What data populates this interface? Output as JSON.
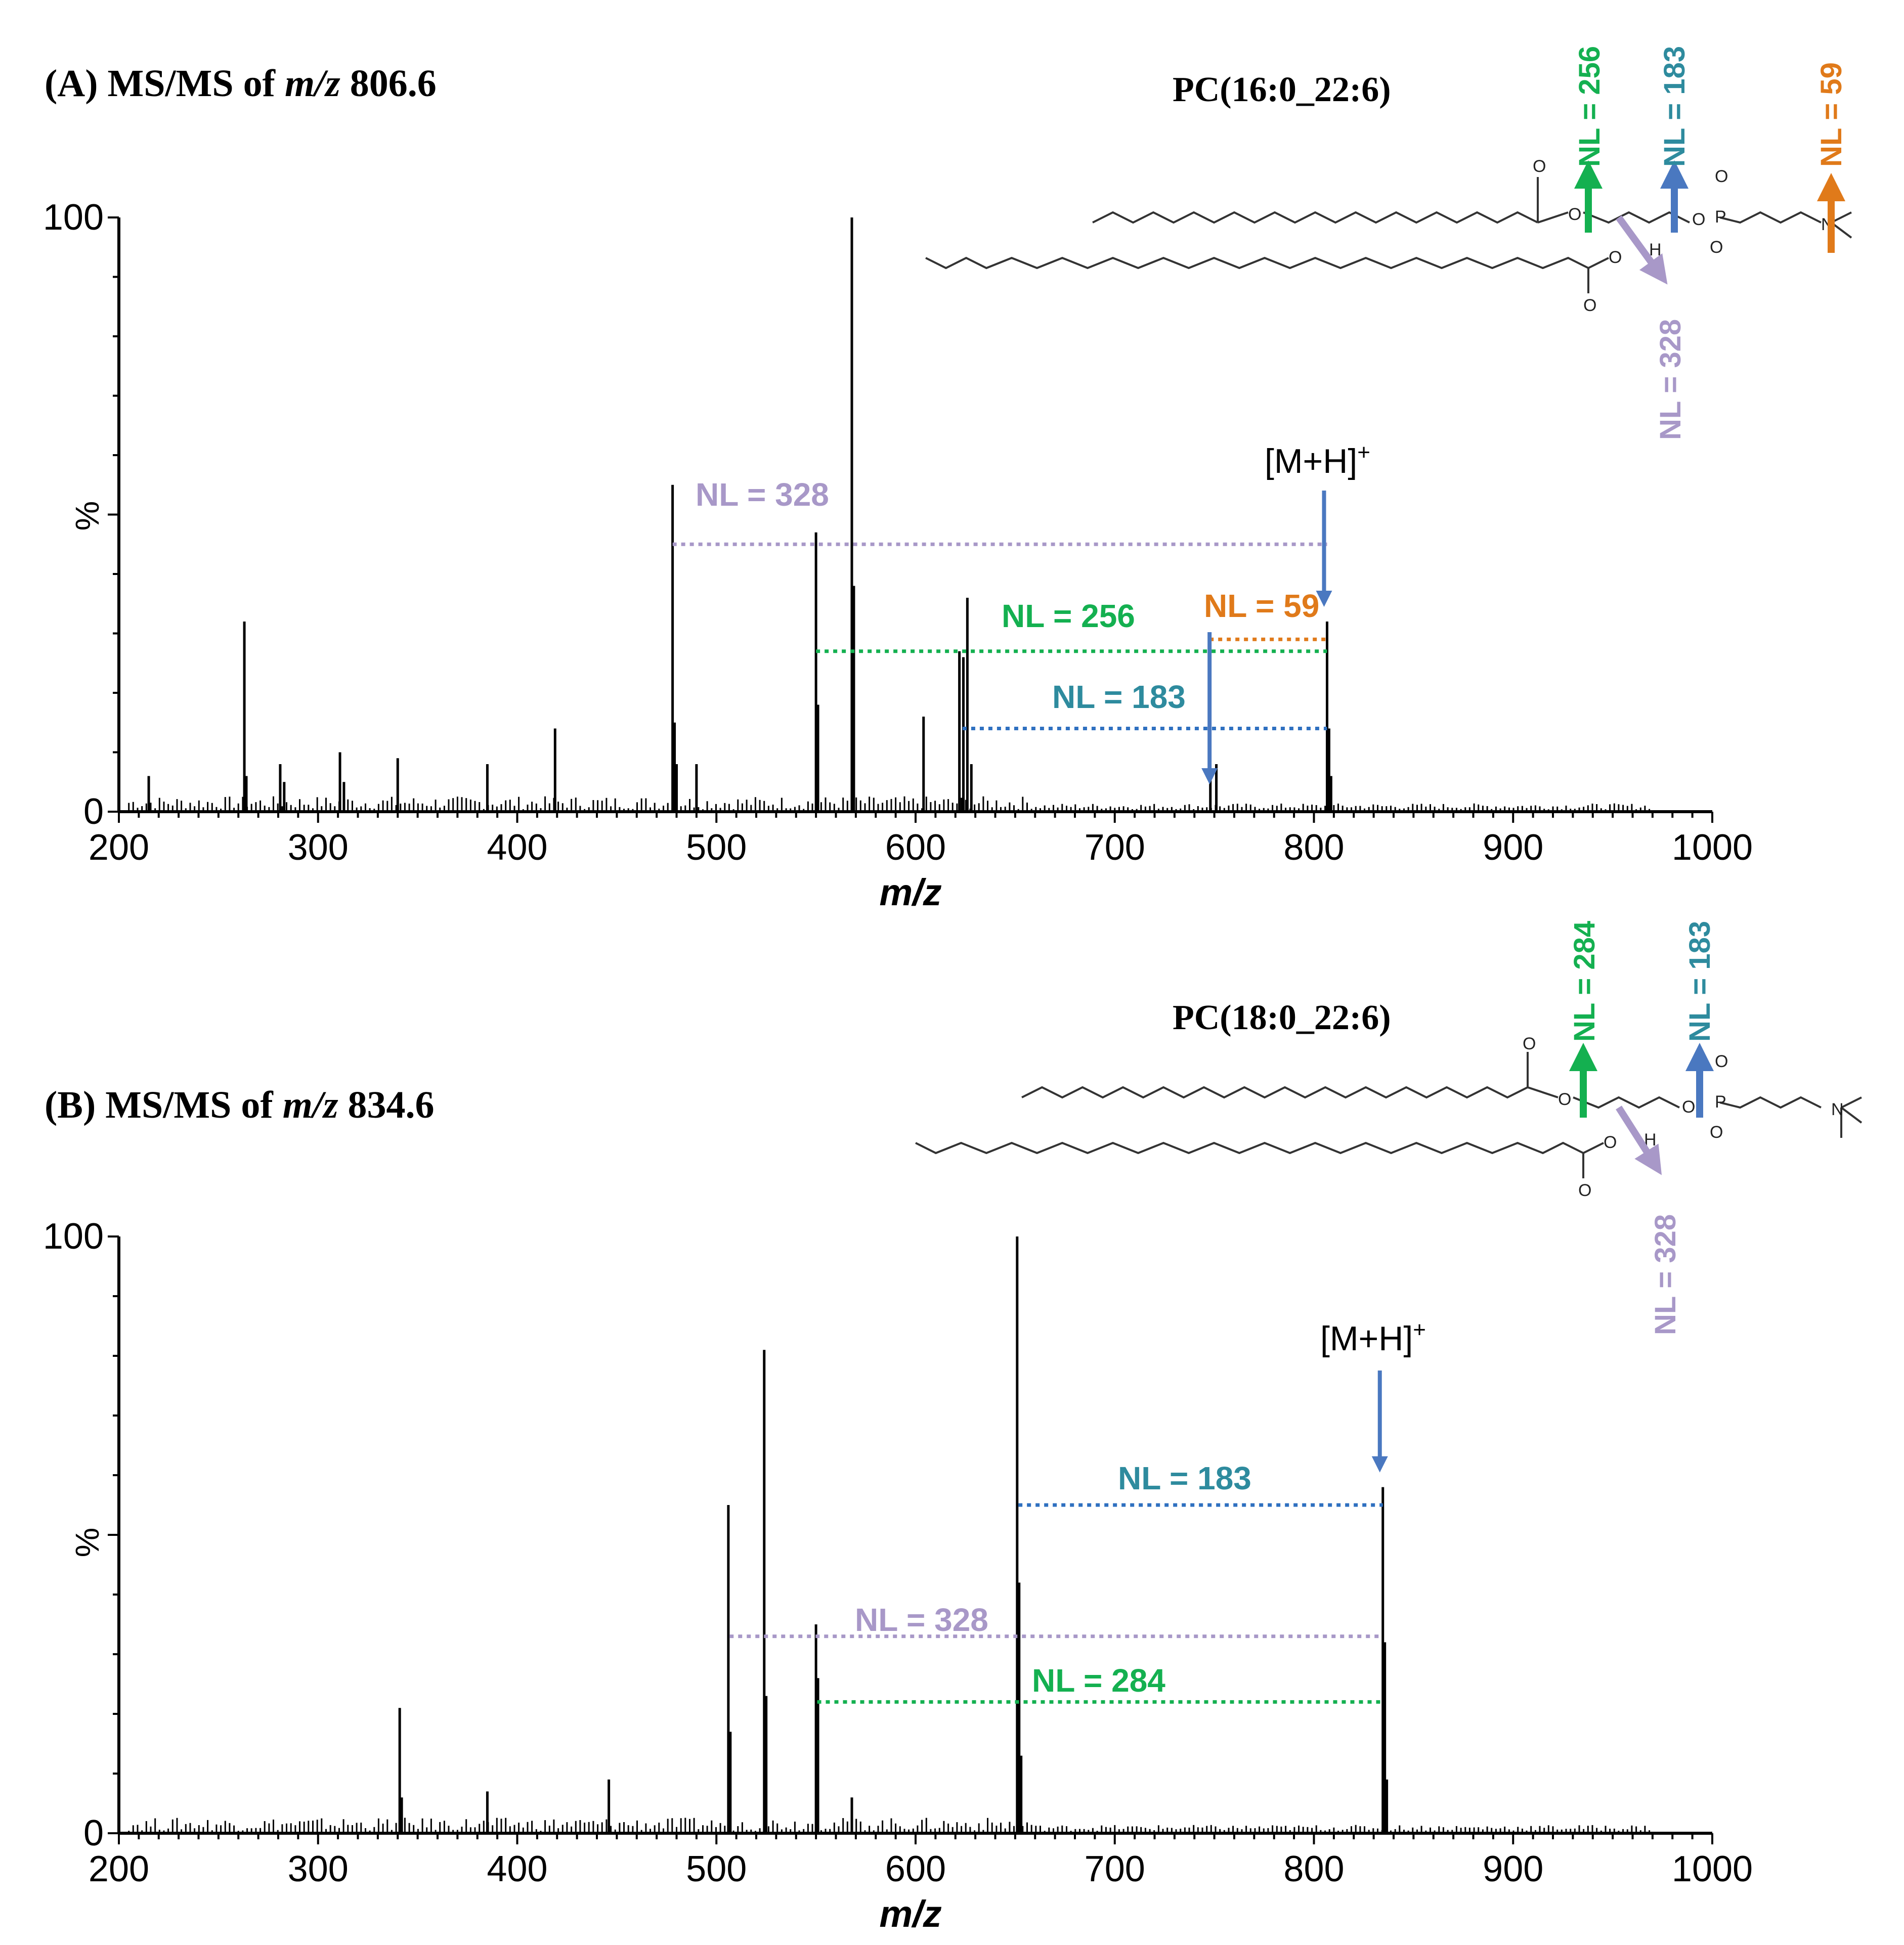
{
  "colors": {
    "green": "#14b050",
    "teal": "#2e8b9e",
    "lavender": "#a898c8",
    "orange": "#e07a1a",
    "blue": "#4a78c0",
    "dot_blue": "#2f70c0"
  },
  "chart_data": [
    {
      "type": "bar",
      "title": {
        "prefix": "(A) MS/MS of ",
        "mz": "m/z",
        "value": " 806.6"
      },
      "compound": "PC(16:0_22:6)",
      "xlabel": "m/z",
      "ylabel": "%",
      "xlim": [
        200,
        1000
      ],
      "ylim": [
        0,
        100
      ],
      "xticks": [
        "200",
        "300",
        "400",
        "500",
        "600",
        "700",
        "800",
        "900",
        "1000"
      ],
      "yticks": [
        "0",
        "100"
      ],
      "precursor_label": "[M+H]",
      "precursor_sup": "+",
      "precursor_mz": 806.6,
      "peaks": [
        {
          "mz": 215,
          "i": 6
        },
        {
          "mz": 263,
          "i": 32
        },
        {
          "mz": 264,
          "i": 6
        },
        {
          "mz": 281,
          "i": 8
        },
        {
          "mz": 283,
          "i": 5
        },
        {
          "mz": 311,
          "i": 10
        },
        {
          "mz": 313,
          "i": 5
        },
        {
          "mz": 340,
          "i": 9
        },
        {
          "mz": 385,
          "i": 8
        },
        {
          "mz": 419,
          "i": 14
        },
        {
          "mz": 478,
          "i": 55
        },
        {
          "mz": 479,
          "i": 15
        },
        {
          "mz": 480,
          "i": 8
        },
        {
          "mz": 490,
          "i": 8
        },
        {
          "mz": 550,
          "i": 47
        },
        {
          "mz": 551,
          "i": 18
        },
        {
          "mz": 568,
          "i": 100
        },
        {
          "mz": 569,
          "i": 38
        },
        {
          "mz": 604,
          "i": 16
        },
        {
          "mz": 622,
          "i": 27
        },
        {
          "mz": 624,
          "i": 26
        },
        {
          "mz": 626,
          "i": 36
        },
        {
          "mz": 628,
          "i": 8
        },
        {
          "mz": 748,
          "i": 6
        },
        {
          "mz": 751,
          "i": 8
        },
        {
          "mz": 806.6,
          "i": 32
        },
        {
          "mz": 807.6,
          "i": 14
        },
        {
          "mz": 808.6,
          "i": 6
        }
      ],
      "neutral_losses": [
        {
          "label": "NL = 328",
          "from_mz": 478,
          "to_mz": 806.6,
          "level": 45
        },
        {
          "label": "NL = 256",
          "from_mz": 550,
          "to_mz": 806.6,
          "level": 27
        },
        {
          "label": "NL = 59",
          "from_mz": 747.6,
          "to_mz": 806.6,
          "level": 29
        },
        {
          "label": "NL = 183",
          "from_mz": 623.6,
          "to_mz": 806.6,
          "level": 14
        }
      ],
      "structure_labels": [
        "NL = 256",
        "NL = 183",
        "NL = 59",
        "NL = 328"
      ]
    },
    {
      "type": "bar",
      "title": {
        "prefix": "(B) MS/MS of ",
        "mz": "m/z",
        "value": " 834.6"
      },
      "compound": "PC(18:0_22:6)",
      "xlabel": "m/z",
      "ylabel": "%",
      "xlim": [
        200,
        1000
      ],
      "ylim": [
        0,
        100
      ],
      "xticks": [
        "200",
        "300",
        "400",
        "500",
        "600",
        "700",
        "800",
        "900",
        "1000"
      ],
      "yticks": [
        "0",
        "100"
      ],
      "precursor_label": "[M+H]",
      "precursor_sup": "+",
      "precursor_mz": 834.6,
      "peaks": [
        {
          "mz": 341,
          "i": 21
        },
        {
          "mz": 342,
          "i": 6
        },
        {
          "mz": 385,
          "i": 7
        },
        {
          "mz": 446,
          "i": 9
        },
        {
          "mz": 506,
          "i": 55
        },
        {
          "mz": 507,
          "i": 17
        },
        {
          "mz": 524,
          "i": 81
        },
        {
          "mz": 525,
          "i": 23
        },
        {
          "mz": 550,
          "i": 35
        },
        {
          "mz": 551,
          "i": 26
        },
        {
          "mz": 568,
          "i": 6
        },
        {
          "mz": 651,
          "i": 100
        },
        {
          "mz": 652,
          "i": 42
        },
        {
          "mz": 653,
          "i": 13
        },
        {
          "mz": 834.6,
          "i": 58
        },
        {
          "mz": 835.6,
          "i": 32
        },
        {
          "mz": 836.6,
          "i": 9
        }
      ],
      "neutral_losses": [
        {
          "label": "NL = 183",
          "from_mz": 651.6,
          "to_mz": 834.6,
          "level": 55
        },
        {
          "label": "NL = 328",
          "from_mz": 506.6,
          "to_mz": 834.6,
          "level": 33
        },
        {
          "label": "NL = 284",
          "from_mz": 550.6,
          "to_mz": 834.6,
          "level": 22
        }
      ],
      "structure_labels": [
        "NL = 284",
        "NL = 183",
        "NL = 328"
      ]
    }
  ]
}
